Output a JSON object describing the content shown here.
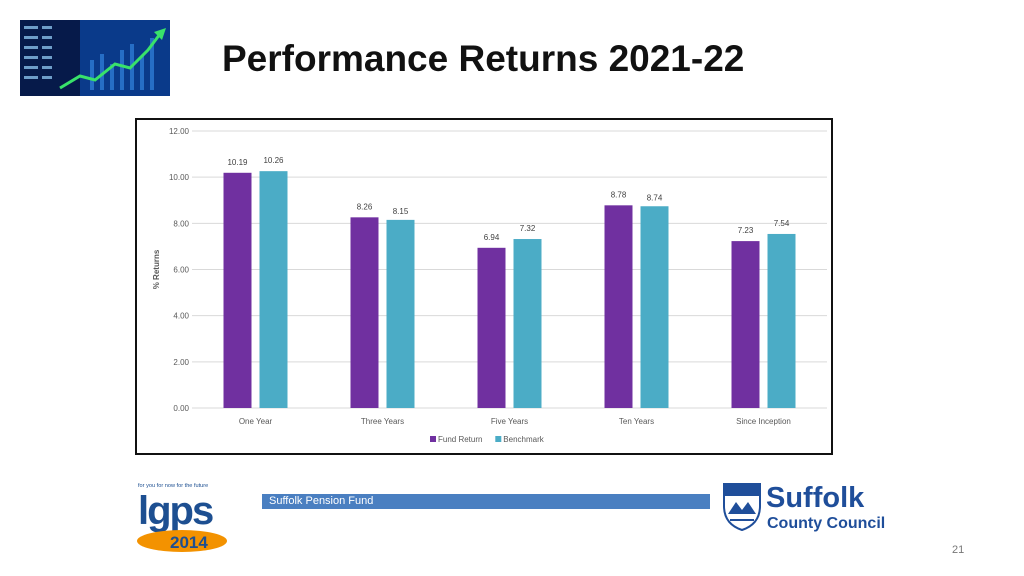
{
  "slide": {
    "title": "Performance Returns 2021-22",
    "footer_label": "Suffolk Pension Fund",
    "page_number": "21",
    "lgps_tagline": "for you for now for the future",
    "lgps_name": "lgps",
    "lgps_year": "2014",
    "council_name_line1": "Suffolk",
    "council_name_line2": "County Council"
  },
  "colors": {
    "fund_return": "#7030a0",
    "benchmark": "#4bacc6",
    "footer_bar": "#4a7fc1",
    "council_blue": "#1f4e9a",
    "lgps_orange": "#f39200",
    "lgps_blue": "#1d4f91"
  },
  "chart_data": {
    "type": "bar",
    "categories": [
      "One Year",
      "Three Years",
      "Five Years",
      "Ten Years",
      "Since Inception"
    ],
    "series": [
      {
        "name": "Fund Return",
        "values": [
          10.19,
          8.26,
          6.94,
          8.78,
          7.23
        ],
        "labels": [
          "10.19",
          "8.26",
          "6.94",
          "8.78",
          "7.23"
        ]
      },
      {
        "name": "Benchmark",
        "values": [
          10.26,
          8.15,
          7.32,
          8.74,
          7.54
        ],
        "labels": [
          "10.26",
          "8.15",
          "7.32",
          "8.74",
          "7.54"
        ]
      }
    ],
    "ylabel": "% Returns",
    "ylim": [
      0,
      12
    ],
    "yticks": [
      "0.00",
      "2.00",
      "4.00",
      "6.00",
      "8.00",
      "10.00",
      "12.00"
    ],
    "grid": true,
    "legend": "bottom"
  }
}
